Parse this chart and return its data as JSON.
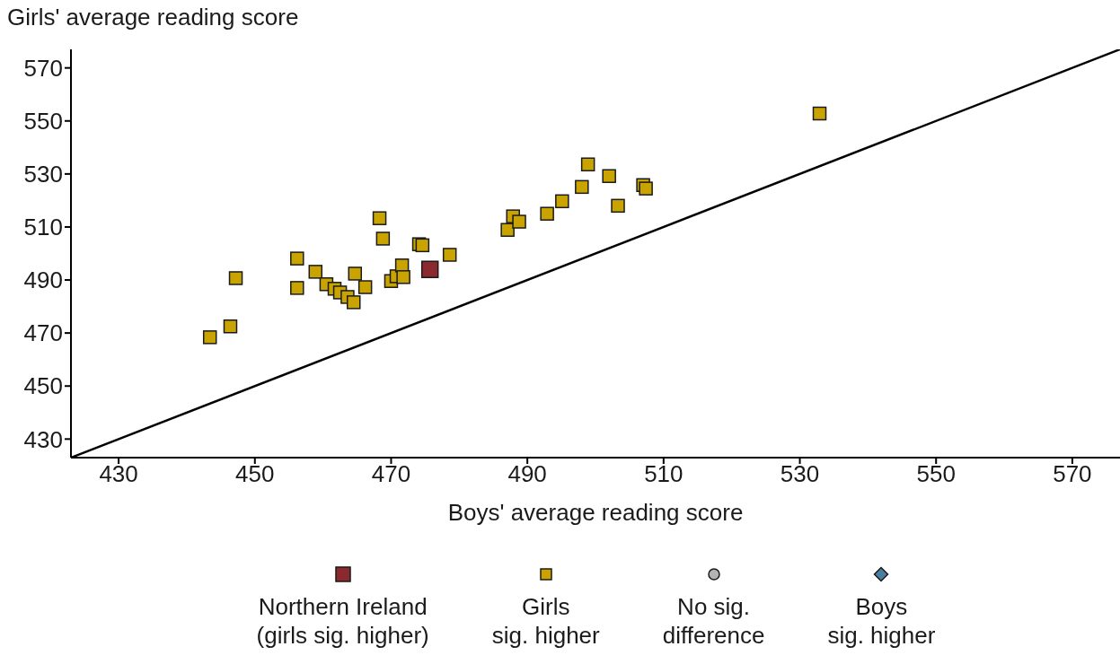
{
  "chart_data": {
    "type": "scatter",
    "xlabel": "Boys' average reading score",
    "ylabel": "Girls' average reading score",
    "xlim": [
      423,
      577
    ],
    "ylim": [
      423,
      577
    ],
    "xticks": [
      430,
      450,
      470,
      490,
      510,
      530,
      550,
      570
    ],
    "yticks": [
      430,
      450,
      470,
      490,
      510,
      530,
      550,
      570
    ],
    "legend": "bottom",
    "series": [
      {
        "name": "Northern Ireland\n(girls sig. higher)",
        "color": "#8b2a2e",
        "marker": "square",
        "x": [
          475.7
        ],
        "values": [
          494.0
        ]
      },
      {
        "name": "Girls\nsig. higher",
        "color": "#c9a400",
        "marker": "square",
        "x": [
          443.4,
          446.4,
          447.2,
          456.2,
          456.2,
          458.9,
          460.5,
          461.7,
          462.5,
          463.6,
          464.5,
          464.7,
          466.2,
          468.3,
          468.8,
          470.0,
          470.8,
          471.6,
          471.8,
          474.1,
          474.6,
          478.6,
          487.1,
          487.9,
          488.8,
          492.9,
          495.1,
          498.0,
          498.9,
          502.0,
          503.3,
          507.0,
          507.4,
          532.9
        ],
        "values": [
          468.4,
          472.5,
          490.7,
          498.1,
          487.0,
          493.1,
          488.4,
          486.7,
          485.3,
          483.6,
          481.6,
          492.4,
          487.3,
          513.3,
          505.6,
          489.6,
          491.4,
          495.5,
          491.1,
          503.5,
          503.1,
          499.5,
          508.9,
          514.0,
          512.0,
          515.0,
          519.7,
          525.1,
          533.6,
          529.2,
          518.0,
          525.8,
          524.5,
          552.8
        ]
      },
      {
        "name": "No sig.\ndifference",
        "color": "#b3b3b3",
        "marker": "circle"
      },
      {
        "name": "Boys\nsig. higher",
        "color": "#4a7ea0",
        "marker": "diamond"
      },
      {
        "type": "line",
        "color": "#000000",
        "marker": "none",
        "x": [
          423,
          577
        ],
        "values": [
          423,
          577
        ]
      }
    ]
  }
}
